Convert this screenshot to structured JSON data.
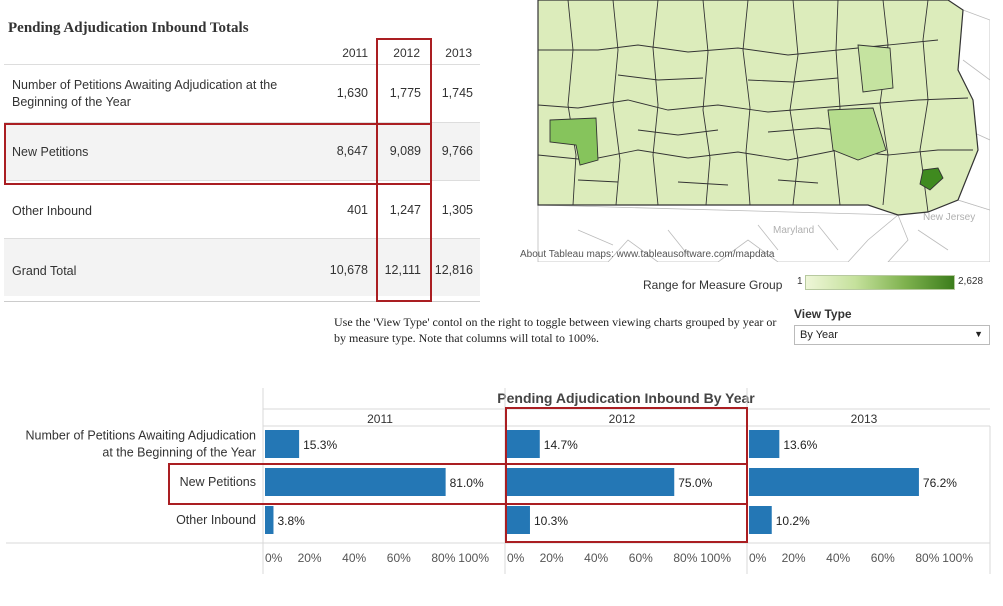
{
  "totals": {
    "title": "Pending Adjudication Inbound Totals",
    "years": [
      "2011",
      "2012",
      "2013"
    ],
    "rows": [
      {
        "label": "Number of Petitions Awaiting Adjudication at the Beginning of the Year",
        "values": [
          "1,630",
          "1,775",
          "1,745"
        ]
      },
      {
        "label": "New Petitions",
        "values": [
          "8,647",
          "9,089",
          "9,766"
        ]
      },
      {
        "label": "Other Inbound",
        "values": [
          "401",
          "1,247",
          "1,305"
        ]
      },
      {
        "label": "Grand Total",
        "values": [
          "10,678",
          "12,111",
          "12,816"
        ]
      }
    ]
  },
  "map": {
    "attribution": "About Tableau maps: www.tableausoftware.com/mapdata",
    "place_labels": [
      "Maryland",
      "New Jersey"
    ],
    "legend_title": "Range for  Measure Group",
    "legend_min": "1",
    "legend_max": "2,628",
    "colors": {
      "light": "#dcecbb",
      "mid": "#a8d47d",
      "dark": "#3f8a1f"
    }
  },
  "instructions": "Use the 'View Type' contol on the right to toggle between viewing charts grouped by year or by measure type.  Note that columns will total to 100%.",
  "view_type": {
    "label": "View Type",
    "selected": "By Year"
  },
  "chart_data": {
    "type": "bar",
    "title": "Pending Adjudication Inbound By Year",
    "panels": [
      "2011",
      "2012",
      "2013"
    ],
    "categories": [
      "Number of Petitions Awaiting Adjudication at the Beginning of the Year",
      "New Petitions",
      "Other Inbound"
    ],
    "category_lines": [
      [
        "Number of Petitions Awaiting Adjudication",
        "at the Beginning of the Year"
      ],
      [
        "New Petitions"
      ],
      [
        "Other Inbound"
      ]
    ],
    "series": [
      {
        "name": "2011",
        "values": [
          15.3,
          81.0,
          3.8
        ],
        "labels": [
          "15.3%",
          "81.0%",
          "3.8%"
        ]
      },
      {
        "name": "2012",
        "values": [
          14.7,
          75.0,
          10.3
        ],
        "labels": [
          "14.7%",
          "75.0%",
          "10.3%"
        ]
      },
      {
        "name": "2013",
        "values": [
          13.6,
          76.2,
          10.2
        ],
        "labels": [
          "13.6%",
          "76.2%",
          "10.2%"
        ]
      }
    ],
    "xlim": [
      0,
      100
    ],
    "ticks": [
      "0%",
      "20%",
      "40%",
      "60%",
      "80%",
      "100%"
    ],
    "bar_color": "#2477b5"
  }
}
